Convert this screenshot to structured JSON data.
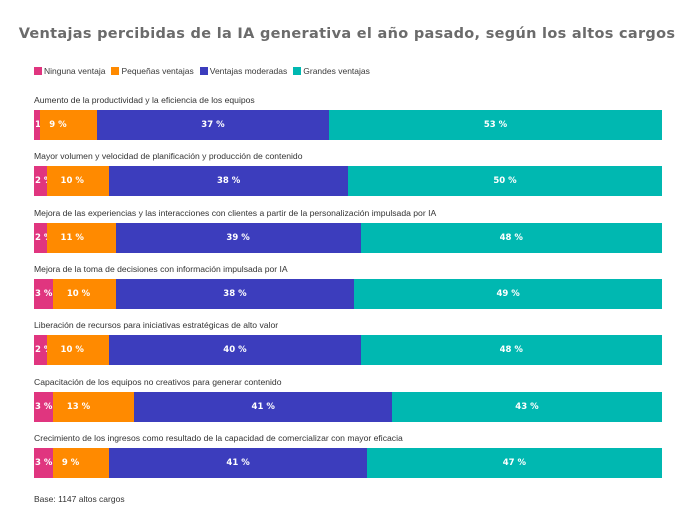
{
  "chart_data": {
    "type": "bar",
    "orientation": "horizontal",
    "stacked": true,
    "title": "Ventajas percibidas de la IA generativa el año pasado, según los altos cargos",
    "xlabel": "",
    "ylabel": "",
    "xlim": [
      0,
      100
    ],
    "grid": false,
    "legend_position": "top-left",
    "categories": [
      "Aumento de la productividad y la eficiencia de los equipos",
      "Mayor volumen y velocidad de planificación y producción de contenido",
      "Mejora de las experiencias y las interacciones con clientes a partir de la personalización impulsada por IA",
      "Mejora de la toma de decisiones con información impulsada por IA",
      "Liberación de recursos para iniciativas estratégicas de alto valor",
      "Capacitación de los equipos no creativos para generar contenido",
      "Crecimiento de los ingresos como resultado de la capacidad de comercializar con mayor eficacia"
    ],
    "series": [
      {
        "name": "Ninguna ventaja",
        "color": "#e0357f",
        "values": [
          1,
          2,
          2,
          3,
          2,
          3,
          3
        ]
      },
      {
        "name": "Pequeñas ventajas",
        "color": "#ff8a00",
        "values": [
          9,
          10,
          11,
          10,
          10,
          13,
          9
        ]
      },
      {
        "name": "Ventajas moderadas",
        "color": "#3c3dbd",
        "values": [
          37,
          38,
          39,
          38,
          40,
          41,
          41
        ]
      },
      {
        "name": "Grandes ventajas",
        "color": "#00b8b1",
        "values": [
          53,
          50,
          48,
          49,
          48,
          43,
          47
        ]
      }
    ],
    "value_suffix": " %",
    "footnote": "Base: 1147 altos cargos"
  }
}
